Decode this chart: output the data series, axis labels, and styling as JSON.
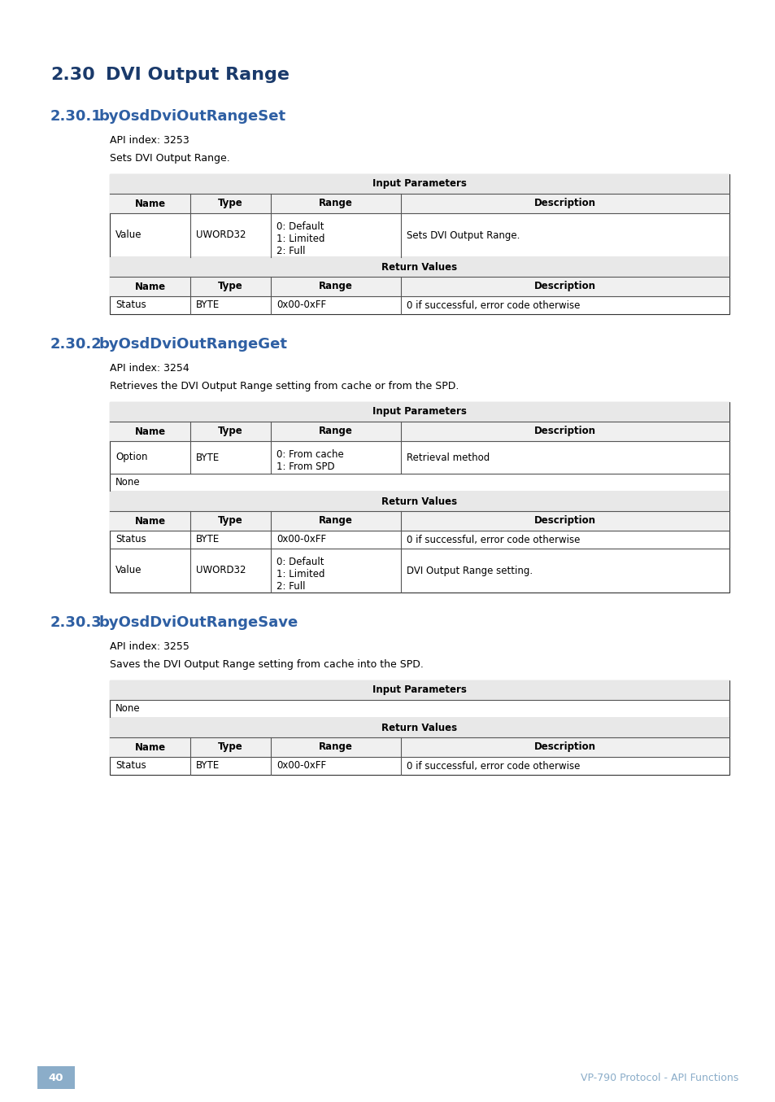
{
  "page_bg": "#ffffff",
  "title_color": "#1a3a6b",
  "section_color": "#2e5fa3",
  "body_color": "#000000",
  "footer_page_bg": "#8badc9",
  "footer_text_color": "#8badc9",
  "main_title_num": "2.30",
  "main_title_text": "DVI Output Range",
  "sections": [
    {
      "number": "2.30.1",
      "name": "byOsdDviOutRangeSet",
      "api_index": "API index: 3253",
      "description": "Sets DVI Output Range.",
      "tables": [
        {
          "section_title": "Input Parameters",
          "header": [
            "Name",
            "Type",
            "Range",
            "Description"
          ],
          "rows": [
            [
              "Value",
              "UWORD32",
              "0: Default\n1: Limited\n2: Full",
              "Sets DVI Output Range."
            ]
          ]
        },
        {
          "section_title": "Return Values",
          "header": [
            "Name",
            "Type",
            "Range",
            "Description"
          ],
          "rows": [
            [
              "Status",
              "BYTE",
              "0x00-0xFF",
              "0 if successful, error code otherwise"
            ]
          ]
        }
      ]
    },
    {
      "number": "2.30.2",
      "name": "byOsdDviOutRangeGet",
      "api_index": "API index: 3254",
      "description": "Retrieves the DVI Output Range setting from cache or from the SPD.",
      "tables": [
        {
          "section_title": "Input Parameters",
          "header": [
            "Name",
            "Type",
            "Range",
            "Description"
          ],
          "rows": [
            [
              "Option",
              "BYTE",
              "0: From cache\n1: From SPD",
              "Retrieval method"
            ],
            [
              "__NONE__",
              "",
              "",
              ""
            ]
          ]
        },
        {
          "section_title": "Return Values",
          "header": [
            "Name",
            "Type",
            "Range",
            "Description"
          ],
          "rows": [
            [
              "Status",
              "BYTE",
              "0x00-0xFF",
              "0 if successful, error code otherwise"
            ],
            [
              "Value",
              "UWORD32",
              "0: Default\n1: Limited\n2: Full",
              "DVI Output Range setting."
            ]
          ]
        }
      ]
    },
    {
      "number": "2.30.3",
      "name": "byOsdDviOutRangeSave",
      "api_index": "API index: 3255",
      "description": "Saves the DVI Output Range setting from cache into the SPD.",
      "tables": [
        {
          "section_title": "Input Parameters",
          "header": null,
          "rows": [
            [
              "__NONE__",
              "",
              "",
              ""
            ]
          ]
        },
        {
          "section_title": "Return Values",
          "header": [
            "Name",
            "Type",
            "Range",
            "Description"
          ],
          "rows": [
            [
              "Status",
              "BYTE",
              "0x00-0xFF",
              "0 if successful, error code otherwise"
            ]
          ]
        }
      ]
    }
  ],
  "footer_page": "40",
  "footer_text": "VP-790 Protocol - API Functions"
}
